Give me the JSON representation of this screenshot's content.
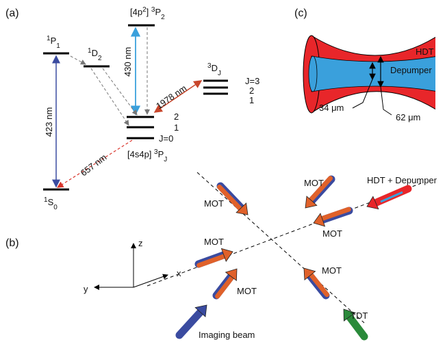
{
  "panels": [
    "(a)",
    "(b)",
    "(c)"
  ],
  "levels": [
    {
      "parts": [
        {
          "sup": "1"
        },
        {
          "t": "S"
        },
        {
          "sub": "0"
        }
      ]
    },
    {
      "parts": [
        {
          "sup": "1"
        },
        {
          "t": "P"
        },
        {
          "sub": "1"
        }
      ]
    },
    {
      "parts": [
        {
          "sup": "1"
        },
        {
          "t": "D"
        },
        {
          "sub": "2"
        }
      ]
    },
    {
      "parts": [
        {
          "t": "[4p"
        },
        {
          "sup": "2"
        },
        {
          "t": "] "
        },
        {
          "sup": "3"
        },
        {
          "t": "P"
        },
        {
          "sub": "2"
        }
      ]
    },
    {
      "parts": [
        {
          "t": "[4s4p] "
        },
        {
          "sup": "3"
        },
        {
          "t": "P"
        },
        {
          "sub": "J"
        }
      ]
    },
    {
      "parts": [
        {
          "sup": "3"
        },
        {
          "t": "D"
        },
        {
          "sub": "J"
        }
      ]
    }
  ],
  "sublevels_3P": [
    "2",
    "1",
    "J=0"
  ],
  "sublevels_3D": [
    "J=3",
    "2",
    "1"
  ],
  "transitions": [
    "423 nm",
    "657 nm",
    "430 nm",
    "1978 nm"
  ],
  "beam_profile": {
    "outer": "HDT",
    "inner": "Depumper",
    "waist_inner": "34 μm",
    "waist_outer": "62 μm"
  },
  "setup": {
    "mot": [
      "MOT",
      "MOT",
      "MOT",
      "MOT",
      "MOT",
      "MOT"
    ],
    "hdt": "HDT + Depumper",
    "tdt": "TDT",
    "imaging": "Imaging beam",
    "axes": [
      "z",
      "y",
      "x"
    ]
  }
}
